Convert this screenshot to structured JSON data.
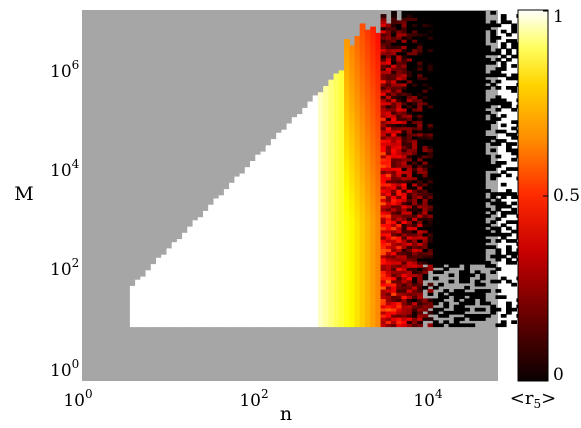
{
  "chart_data": {
    "type": "heatmap",
    "title": "",
    "xlabel": "n",
    "ylabel": "M",
    "x_scale": "log",
    "y_scale": "log",
    "xlim": [
      1,
      60000
    ],
    "ylim": [
      0.9,
      12000000
    ],
    "x_ticks": [
      {
        "base": "10",
        "exp": "0",
        "value": 1
      },
      {
        "base": "10",
        "exp": "2",
        "value": 100
      },
      {
        "base": "10",
        "exp": "4",
        "value": 10000
      }
    ],
    "y_ticks": [
      {
        "base": "10",
        "exp": "0",
        "value": 1
      },
      {
        "base": "10",
        "exp": "2",
        "value": 100
      },
      {
        "base": "10",
        "exp": "4",
        "value": 10000
      },
      {
        "base": "10",
        "exp": "6",
        "value": 1000000
      }
    ],
    "colorbar": {
      "label": "<r",
      "label_sub": "5",
      "label_end": ">",
      "range": [
        0,
        1
      ],
      "ticks": [
        {
          "label": "0",
          "value": 0
        },
        {
          "label": "0.5",
          "value": 0.5
        },
        {
          "label": "1",
          "value": 1
        }
      ],
      "colormap": "hot"
    },
    "background_color": "#a6a6a6",
    "no_data_color": "#a6a6a6",
    "region": {
      "description_values": "mean r5 by log10(n) and log10(M)",
      "lower_edge_M": 10,
      "upper_edge_at_n_5": 100,
      "upper_edge_at_n_1000": 1000000,
      "right_edge_n": 40000
    },
    "grid": false,
    "legend": "none"
  }
}
